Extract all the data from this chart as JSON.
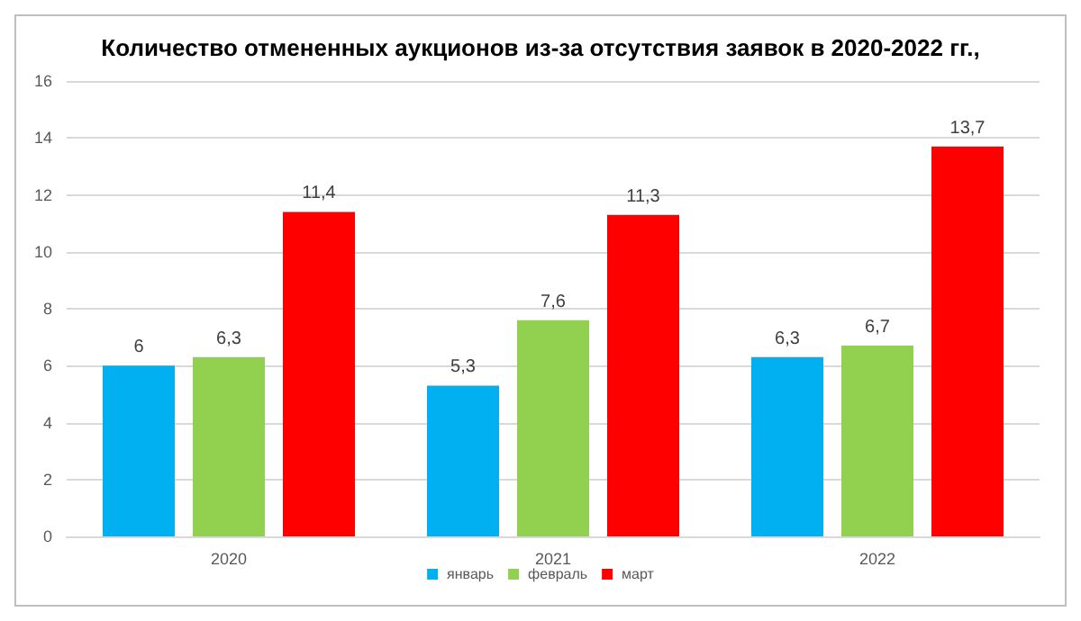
{
  "chart_data": {
    "type": "bar",
    "title": "Количество отмененных аукционов из-за отсутствия заявок в 2020-2022 гг.,",
    "categories": [
      "2020",
      "2021",
      "2022"
    ],
    "series": [
      {
        "name": "январь",
        "color": "#00b0f0",
        "values": [
          6,
          5.3,
          6.3
        ],
        "value_labels": [
          "6",
          "5,3",
          "6,3"
        ]
      },
      {
        "name": "февраль",
        "color": "#92d050",
        "values": [
          6.3,
          7.6,
          6.7
        ],
        "value_labels": [
          "6,3",
          "7,6",
          "6,7"
        ]
      },
      {
        "name": "март",
        "color": "#ff0000",
        "values": [
          11.4,
          11.3,
          13.7
        ],
        "value_labels": [
          "11,4",
          "11,3",
          "13,7"
        ]
      }
    ],
    "ylim": [
      0,
      16
    ],
    "yticks": [
      0,
      2,
      4,
      6,
      8,
      10,
      12,
      14,
      16
    ],
    "grid": "y",
    "legend": "bottom"
  }
}
